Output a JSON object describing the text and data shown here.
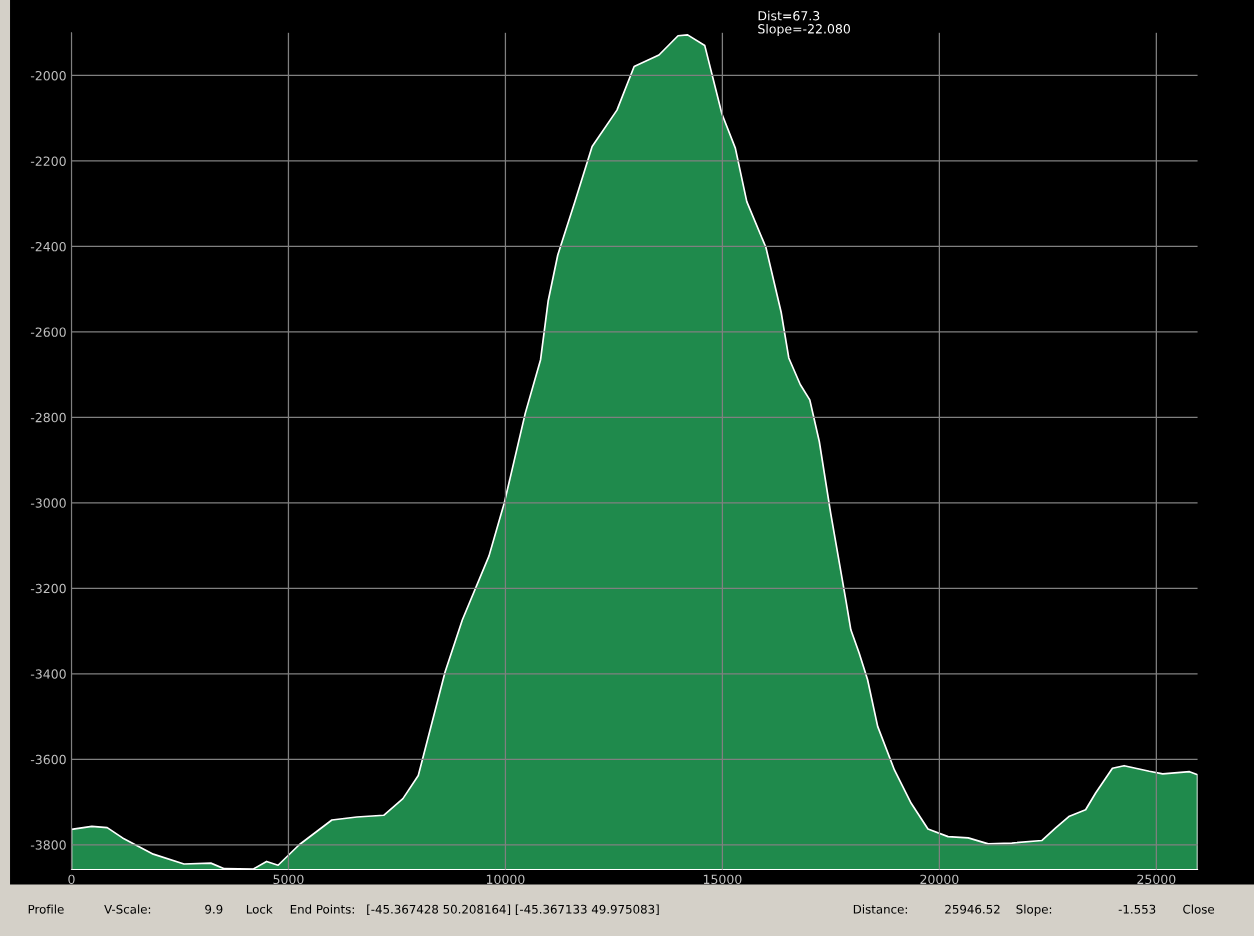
{
  "chart_data": {
    "type": "area",
    "x": [
      0,
      469,
      823,
      1177,
      1885,
      2593,
      3212,
      3522,
      4186,
      4496,
      4761,
      5248,
      6000,
      6576,
      7195,
      7638,
      7992,
      8611,
      9006,
      9622,
      9974,
      10458,
      10810,
      10986,
      11206,
      11602,
      11998,
      12570,
      12966,
      13538,
      13978,
      14198,
      14594,
      14990,
      15298,
      15562,
      16002,
      16354,
      16530,
      16794,
      17014,
      17234,
      17498,
      17844,
      17960,
      18153,
      18346,
      18578,
      18964,
      19351,
      19737,
      20201,
      20665,
      21128,
      21669,
      22365,
      22674,
      22983,
      23370,
      23601,
      23988,
      24258,
      24838,
      25147,
      25765,
      25950
    ],
    "series": [
      {
        "color": "#1f8a4c",
        "values": [
          -3764,
          -3757,
          -3760,
          -3784,
          -3822,
          -3845,
          -3843,
          -3856,
          -3857,
          -3839,
          -3848,
          -3800,
          -3742,
          -3735,
          -3731,
          -3692,
          -3638,
          -3395,
          -3274,
          -3124,
          -3000,
          -2790,
          -2665,
          -2527,
          -2420,
          -2295,
          -2166,
          -2081,
          -1979,
          -1952,
          -1907,
          -1905,
          -1930,
          -2090,
          -2170,
          -2295,
          -2402,
          -2554,
          -2661,
          -2723,
          -2759,
          -2857,
          -3026,
          -3227,
          -3297,
          -3352,
          -3414,
          -3523,
          -3625,
          -3703,
          -3763,
          -3781,
          -3784,
          -3798,
          -3796,
          -3790,
          -3761,
          -3734,
          -3718,
          -3679,
          -3621,
          -3615,
          -3628,
          -3634,
          -3629,
          -3636
        ]
      }
    ],
    "xlim": [
      0,
      25950
    ],
    "ylim": [
      -3858,
      -1900
    ],
    "xticks": [
      0,
      5000,
      10000,
      15000,
      20000,
      25000
    ],
    "yticks": [
      -3800,
      -3600,
      -3400,
      -3200,
      -3000,
      -2800,
      -2600,
      -2400,
      -2200,
      -2000
    ],
    "grid": true,
    "annotations": [
      "Dist=67.3",
      "Slope=-22.080",
      "Profile",
      "V-Scale:",
      "9.9",
      "Lock",
      "End Points:",
      "[-45.367428 50.208164] [-45.367133 49.975083]",
      "Distance:",
      "25946.52",
      "Slope:",
      "-1.553",
      "Close"
    ]
  }
}
